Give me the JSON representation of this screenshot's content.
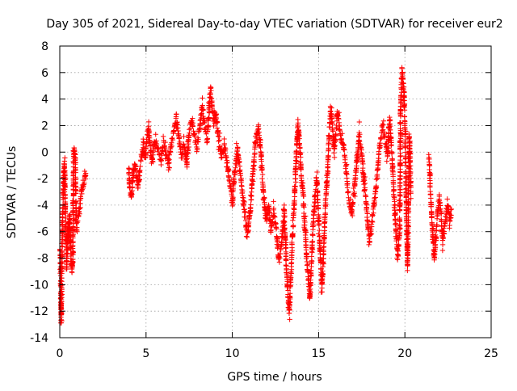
{
  "chart_data": {
    "type": "scatter",
    "title": "Day 305 of 2021, Sidereal Day-to-day VTEC variation (SDTVAR) for receiver eur2",
    "xlabel": "GPS time / hours",
    "ylabel": "SDTVAR / TECUs",
    "xlim": [
      0,
      25
    ],
    "ylim": [
      -14,
      8
    ],
    "xticks": [
      0,
      5,
      10,
      15,
      20,
      25
    ],
    "yticks": [
      -14,
      -12,
      -10,
      -8,
      -6,
      -4,
      -2,
      0,
      2,
      4,
      6,
      8
    ],
    "grid": true,
    "marker": "+",
    "color": "#ff0000",
    "series": [
      {
        "name": "SDTVAR",
        "path": [
          [
            0.02,
            -7.3
          ],
          [
            0.05,
            -9.5
          ],
          [
            0.08,
            -12.8
          ],
          [
            0.1,
            -11.0
          ],
          [
            0.13,
            -7.5
          ],
          [
            0.16,
            -5.0
          ],
          [
            0.2,
            -3.2
          ],
          [
            0.23,
            -1.5
          ],
          [
            0.27,
            -0.8
          ],
          [
            0.3,
            -2.5
          ],
          [
            0.33,
            -4.5
          ],
          [
            0.37,
            -7.0
          ],
          [
            0.4,
            -8.8
          ],
          [
            0.44,
            -7.2
          ],
          [
            0.48,
            -5.5
          ],
          [
            0.52,
            -6.5
          ],
          [
            0.56,
            -4.8
          ],
          [
            0.6,
            -6.0
          ],
          [
            0.65,
            -7.8
          ],
          [
            0.7,
            -9.0
          ],
          [
            0.75,
            -8.5
          ],
          [
            0.8,
            -0.3
          ],
          [
            0.85,
            0.0
          ],
          [
            0.9,
            -0.6
          ],
          [
            0.95,
            -5.2
          ],
          [
            1.0,
            -5.8
          ],
          [
            1.1,
            -4.5
          ],
          [
            1.2,
            -3.5
          ],
          [
            1.3,
            -2.8
          ],
          [
            1.4,
            -2.2
          ],
          [
            1.5,
            -1.6
          ],
          null,
          [
            4.0,
            -1.2
          ],
          [
            4.05,
            -2.8
          ],
          [
            4.15,
            -3.3
          ],
          [
            4.25,
            -1.6
          ],
          [
            4.35,
            -1.0
          ],
          [
            4.45,
            -2.0
          ],
          [
            4.55,
            -2.7
          ],
          [
            4.65,
            -1.2
          ],
          [
            4.75,
            -0.3
          ],
          [
            4.85,
            0.6
          ],
          [
            4.95,
            -0.5
          ],
          [
            5.05,
            1.0
          ],
          [
            5.15,
            1.8
          ],
          [
            5.25,
            0.2
          ],
          [
            5.35,
            -0.7
          ],
          [
            5.45,
            0.4
          ],
          [
            5.55,
            1.0
          ],
          [
            5.7,
            0.2
          ],
          [
            5.85,
            -0.5
          ],
          [
            6.0,
            0.8
          ],
          [
            6.15,
            0.0
          ],
          [
            6.3,
            -1.0
          ],
          [
            6.45,
            0.5
          ],
          [
            6.6,
            1.5
          ],
          [
            6.75,
            2.6
          ],
          [
            6.9,
            1.0
          ],
          [
            7.05,
            -0.3
          ],
          [
            7.2,
            0.7
          ],
          [
            7.35,
            -1.0
          ],
          [
            7.5,
            1.5
          ],
          [
            7.65,
            2.5
          ],
          [
            7.8,
            1.2
          ],
          [
            7.95,
            0.3
          ],
          [
            8.1,
            1.7
          ],
          [
            8.25,
            3.5
          ],
          [
            8.4,
            2.0
          ],
          [
            8.55,
            1.0
          ],
          [
            8.65,
            3.2
          ],
          [
            8.75,
            4.8
          ],
          [
            8.85,
            3.0
          ],
          [
            8.95,
            2.2
          ],
          [
            9.05,
            2.8
          ],
          [
            9.15,
            1.5
          ],
          [
            9.25,
            0.5
          ],
          [
            9.4,
            -0.5
          ],
          [
            9.55,
            0.5
          ],
          [
            9.7,
            -1.0
          ],
          [
            9.85,
            -2.2
          ],
          [
            10.0,
            -3.8
          ],
          [
            10.15,
            -1.5
          ],
          [
            10.3,
            0.2
          ],
          [
            10.45,
            -1.5
          ],
          [
            10.6,
            -3.2
          ],
          [
            10.75,
            -4.8
          ],
          [
            10.9,
            -6.2
          ],
          [
            11.05,
            -4.2
          ],
          [
            11.2,
            -1.5
          ],
          [
            11.35,
            0.8
          ],
          [
            11.5,
            2.0
          ],
          [
            11.65,
            0.0
          ],
          [
            11.8,
            -3.0
          ],
          [
            11.95,
            -5.2
          ],
          [
            12.1,
            -4.0
          ],
          [
            12.25,
            -5.8
          ],
          [
            12.4,
            -4.5
          ],
          [
            12.55,
            -6.0
          ],
          [
            12.7,
            -8.2
          ],
          [
            12.85,
            -7.0
          ],
          [
            13.0,
            -4.5
          ],
          [
            13.1,
            -7.5
          ],
          [
            13.2,
            -10.5
          ],
          [
            13.3,
            -12.0
          ],
          [
            13.4,
            -9.0
          ],
          [
            13.5,
            -6.0
          ],
          [
            13.6,
            -3.5
          ],
          [
            13.7,
            -0.5
          ],
          [
            13.8,
            2.2
          ],
          [
            13.9,
            0.5
          ],
          [
            14.0,
            -2.0
          ],
          [
            14.1,
            -3.2
          ],
          [
            14.2,
            -5.5
          ],
          [
            14.3,
            -7.8
          ],
          [
            14.4,
            -9.5
          ],
          [
            14.5,
            -11.0
          ],
          [
            14.6,
            -8.0
          ],
          [
            14.7,
            -5.0
          ],
          [
            14.8,
            -3.0
          ],
          [
            14.9,
            -2.0
          ],
          [
            15.0,
            -5.0
          ],
          [
            15.1,
            -8.0
          ],
          [
            15.2,
            -10.2
          ],
          [
            15.3,
            -7.0
          ],
          [
            15.4,
            -4.0
          ],
          [
            15.5,
            -2.0
          ],
          [
            15.6,
            1.0
          ],
          [
            15.7,
            3.2
          ],
          [
            15.8,
            2.0
          ],
          [
            15.9,
            0.0
          ],
          [
            16.0,
            1.5
          ],
          [
            16.1,
            3.0
          ],
          [
            16.2,
            2.0
          ],
          [
            16.3,
            1.0
          ],
          [
            16.45,
            0.5
          ],
          [
            16.6,
            -1.5
          ],
          [
            16.75,
            -3.5
          ],
          [
            16.9,
            -4.5
          ],
          [
            17.05,
            -3.0
          ],
          [
            17.2,
            -1.0
          ],
          [
            17.35,
            1.3
          ],
          [
            17.5,
            0.0
          ],
          [
            17.65,
            -2.5
          ],
          [
            17.8,
            -4.5
          ],
          [
            17.95,
            -6.8
          ],
          [
            18.1,
            -5.2
          ],
          [
            18.25,
            -3.5
          ],
          [
            18.4,
            -1.8
          ],
          [
            18.55,
            0.5
          ],
          [
            18.7,
            2.0
          ],
          [
            18.85,
            1.0
          ],
          [
            19.0,
            -0.5
          ],
          [
            19.1,
            2.5
          ],
          [
            19.2,
            1.0
          ],
          [
            19.3,
            -1.5
          ],
          [
            19.4,
            -4.0
          ],
          [
            19.5,
            -6.5
          ],
          [
            19.6,
            -7.8
          ],
          [
            19.7,
            -6.0
          ],
          [
            19.75,
            3.0
          ],
          [
            19.8,
            5.5
          ],
          [
            19.85,
            6.2
          ],
          [
            19.9,
            5.0
          ],
          [
            19.95,
            4.5
          ],
          [
            20.0,
            2.0
          ],
          [
            20.05,
            -1.0
          ],
          [
            20.1,
            -5.0
          ],
          [
            20.15,
            -8.5
          ],
          [
            20.2,
            -5.0
          ],
          [
            20.25,
            1.0
          ],
          [
            20.3,
            0.0
          ],
          [
            20.35,
            -3.5
          ],
          null,
          [
            21.4,
            -0.5
          ],
          [
            21.5,
            -3.5
          ],
          [
            21.6,
            -6.0
          ],
          [
            21.7,
            -8.0
          ],
          [
            21.8,
            -6.5
          ],
          [
            21.9,
            -4.5
          ],
          [
            22.0,
            -3.5
          ],
          [
            22.1,
            -5.0
          ],
          [
            22.2,
            -6.8
          ],
          [
            22.3,
            -5.5
          ],
          [
            22.4,
            -4.5
          ],
          [
            22.5,
            -4.0
          ],
          [
            22.6,
            -5.2
          ],
          [
            22.7,
            -4.3
          ]
        ]
      }
    ]
  }
}
